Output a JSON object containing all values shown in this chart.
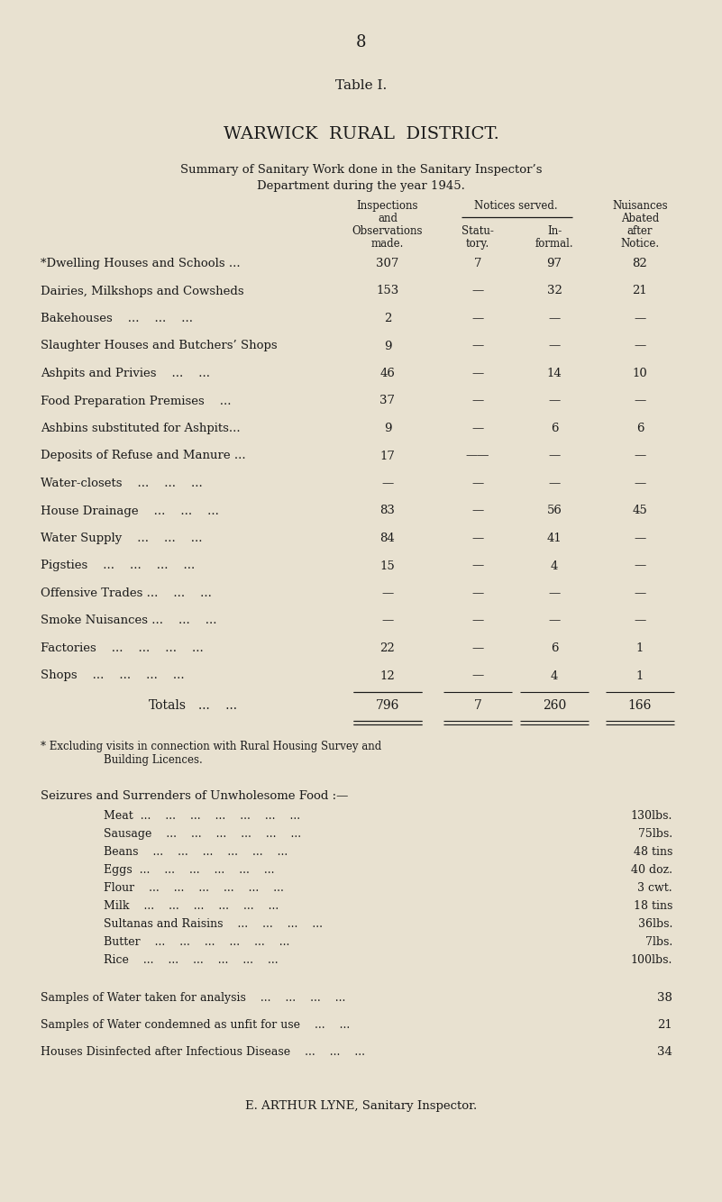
{
  "bg_color": "#e8e1d0",
  "text_color": "#1a1a1a",
  "page_number": "8",
  "table_label": "Table I.",
  "title1": "WARWICK  RURAL  DISTRICT.",
  "title2_line1": "Summary of Sanitary Work done in the Sanitary Inspector’s",
  "title2_line2": "Department during the year 1945.",
  "rows": [
    {
      "label": "*Dwelling Houses and Schools ...",
      "vals": [
        "307",
        "7",
        "97",
        "82"
      ]
    },
    {
      "label": "Dairies, Milkshops and Cowsheds",
      "vals": [
        "153",
        "—",
        "32",
        "21"
      ]
    },
    {
      "label": "Bakehouses    ...    ...    ...",
      "vals": [
        "2",
        "—",
        "—",
        "—"
      ]
    },
    {
      "label": "Slaughter Houses and Butchers’ Shops",
      "vals": [
        "9",
        "—",
        "—",
        "—"
      ]
    },
    {
      "label": "Ashpits and Privies    ...    ...",
      "vals": [
        "46",
        "—",
        "14",
        "10"
      ]
    },
    {
      "label": "Food Preparation Premises    ...",
      "vals": [
        "37",
        "—",
        "—",
        "—"
      ]
    },
    {
      "label": "Ashbins substituted for Ashpits...",
      "vals": [
        "9",
        "—",
        "6",
        "6"
      ]
    },
    {
      "label": "Deposits of Refuse and Manure ...",
      "vals": [
        "17",
        "——",
        "—",
        "—"
      ]
    },
    {
      "label": "Water-closets    ...    ...    ...",
      "vals": [
        "—",
        "—",
        "—",
        "—"
      ]
    },
    {
      "label": "House Drainage    ...    ...    ...",
      "vals": [
        "83",
        "—",
        "56",
        "45"
      ]
    },
    {
      "label": "Water Supply    ...    ...    ...",
      "vals": [
        "84",
        "—",
        "41",
        "—"
      ]
    },
    {
      "label": "Pigsties    ...    ...    ...    ...",
      "vals": [
        "15",
        "—",
        "4",
        "—"
      ]
    },
    {
      "label": "Offensive Trades ...    ...    ...",
      "vals": [
        "—",
        "—",
        "—",
        "—"
      ]
    },
    {
      "label": "Smoke Nuisances ...    ...    ...",
      "vals": [
        "—",
        "—",
        "—",
        "—"
      ]
    },
    {
      "label": "Factories    ...    ...    ...    ...",
      "vals": [
        "22",
        "—",
        "6",
        "1"
      ]
    },
    {
      "label": "Shops    ...    ...    ...    ...",
      "vals": [
        "12",
        "—",
        "4",
        "1"
      ]
    }
  ],
  "totals_label": "Totals",
  "totals_dots": "...    ...",
  "totals_vals": [
    "796",
    "7",
    "260",
    "166"
  ],
  "footnote_line1": "* Excluding visits in connection with Rural Housing Survey and",
  "footnote_line2": "Building Licences.",
  "seizures_title": "Seizures and Surrenders of Unwholesome Food :—",
  "seizures": [
    {
      "item": "Meat  ...    ...    ...    ...    ...    ...    ...",
      "amount": "130lbs."
    },
    {
      "item": "Sausage    ...    ...    ...    ...    ...    ...",
      "amount": "75lbs."
    },
    {
      "item": "Beans    ...    ...    ...    ...    ...    ...",
      "amount": "48 tins"
    },
    {
      "item": "Eggs  ...    ...    ...    ...    ...    ...",
      "amount": "40 doz."
    },
    {
      "item": "Flour    ...    ...    ...    ...    ...    ...",
      "amount": "3 cwt."
    },
    {
      "item": "Milk    ...    ...    ...    ...    ...    ...",
      "amount": "18 tins"
    },
    {
      "item": "Sultanas and Raisins    ...    ...    ...    ...",
      "amount": "36lbs."
    },
    {
      "item": "Butter    ...    ...    ...    ...    ...    ...",
      "amount": "7lbs."
    },
    {
      "item": "Rice    ...    ...    ...    ...    ...    ...",
      "amount": "100lbs."
    }
  ],
  "stats": [
    {
      "label": "Samples of Water taken for analysis    ...    ...    ...    ...",
      "val": "38"
    },
    {
      "label": "Samples of Water condemned as unfit for use    ...    ...",
      "val": "21"
    },
    {
      "label": "Houses Disinfected after Infectious Disease    ...    ...    ...",
      "val": "34"
    }
  ],
  "signature": "E. ARTHUR LYNE, Sanitary Inspector."
}
